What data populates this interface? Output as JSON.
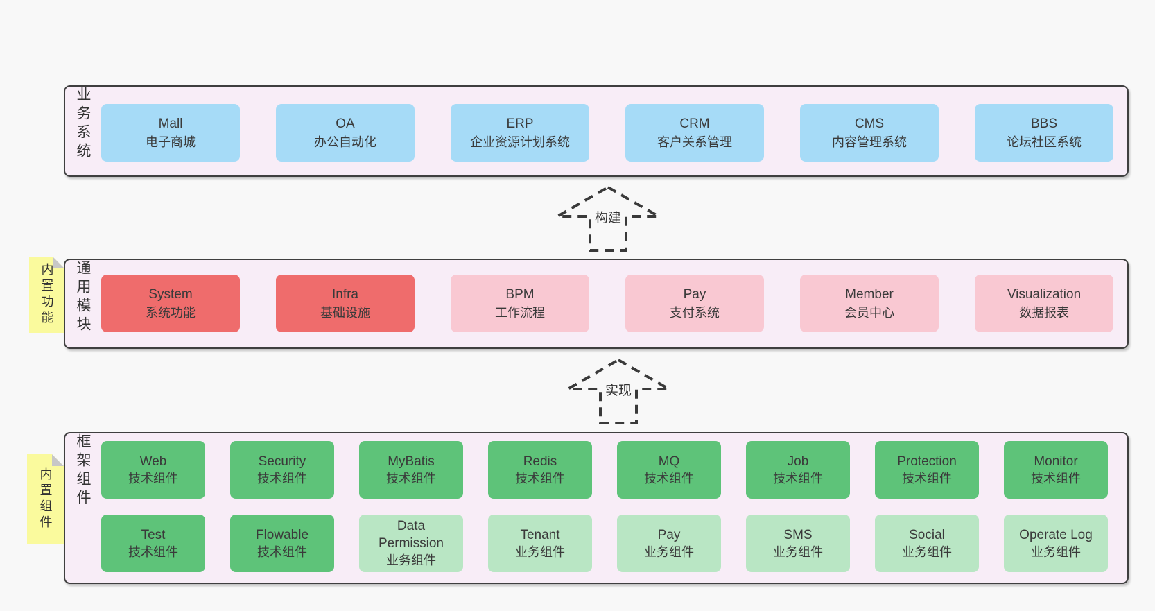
{
  "colors": {
    "pageBg": "#f8f8f8",
    "bandFill": "#f8edf7",
    "bandBorder": "#3f3f3f",
    "blue": "#a6dbf7",
    "red": "#ef6c6c",
    "pink": "#f9c8d2",
    "green": "#5ec379",
    "lightgreen": "#b9e6c4",
    "sticky": "#fafa9d",
    "fold": "#c7c7c7",
    "arrow": "#3a3a3a",
    "text": "#3a3a3a"
  },
  "bands": [
    {
      "label": "业务系统",
      "rows": [
        [
          {
            "name": "Mall",
            "desc": "电子商城",
            "color": "blue"
          },
          {
            "name": "OA",
            "desc": "办公自动化",
            "color": "blue"
          },
          {
            "name": "ERP",
            "desc": "企业资源计划系统",
            "color": "blue"
          },
          {
            "name": "CRM",
            "desc": "客户关系管理",
            "color": "blue"
          },
          {
            "name": "CMS",
            "desc": "内容管理系统",
            "color": "blue"
          },
          {
            "name": "BBS",
            "desc": "论坛社区系统",
            "color": "blue"
          }
        ]
      ]
    },
    {
      "label": "通用模块",
      "sticky": "内置功能",
      "rows": [
        [
          {
            "name": "System",
            "desc": "系统功能",
            "color": "red"
          },
          {
            "name": "Infra",
            "desc": "基础设施",
            "color": "red"
          },
          {
            "name": "BPM",
            "desc": "工作流程",
            "color": "pink"
          },
          {
            "name": "Pay",
            "desc": "支付系统",
            "color": "pink"
          },
          {
            "name": "Member",
            "desc": "会员中心",
            "color": "pink"
          },
          {
            "name": "Visualization",
            "desc": "数据报表",
            "color": "pink"
          }
        ]
      ]
    },
    {
      "label": "框架组件",
      "sticky": "内置组件",
      "rows": [
        [
          {
            "name": "Web",
            "desc": "技术组件",
            "color": "green"
          },
          {
            "name": "Security",
            "desc": "技术组件",
            "color": "green"
          },
          {
            "name": "MyBatis",
            "desc": "技术组件",
            "color": "green"
          },
          {
            "name": "Redis",
            "desc": "技术组件",
            "color": "green"
          },
          {
            "name": "MQ",
            "desc": "技术组件",
            "color": "green"
          },
          {
            "name": "Job",
            "desc": "技术组件",
            "color": "green"
          },
          {
            "name": "Protection",
            "desc": "技术组件",
            "color": "green"
          },
          {
            "name": "Monitor",
            "desc": "技术组件",
            "color": "green"
          }
        ],
        [
          {
            "name": "Test",
            "desc": "技术组件",
            "color": "green"
          },
          {
            "name": "Flowable",
            "desc": "技术组件",
            "color": "green"
          },
          {
            "name": "Data Permission",
            "desc": "业务组件",
            "color": "lightgreen"
          },
          {
            "name": "Tenant",
            "desc": "业务组件",
            "color": "lightgreen"
          },
          {
            "name": "Pay",
            "desc": "业务组件",
            "color": "lightgreen"
          },
          {
            "name": "SMS",
            "desc": "业务组件",
            "color": "lightgreen"
          },
          {
            "name": "Social",
            "desc": "业务组件",
            "color": "lightgreen"
          },
          {
            "name": "Operate Log",
            "desc": "业务组件",
            "color": "lightgreen"
          }
        ]
      ]
    }
  ],
  "arrows": [
    {
      "label": "构建"
    },
    {
      "label": "实现"
    }
  ]
}
